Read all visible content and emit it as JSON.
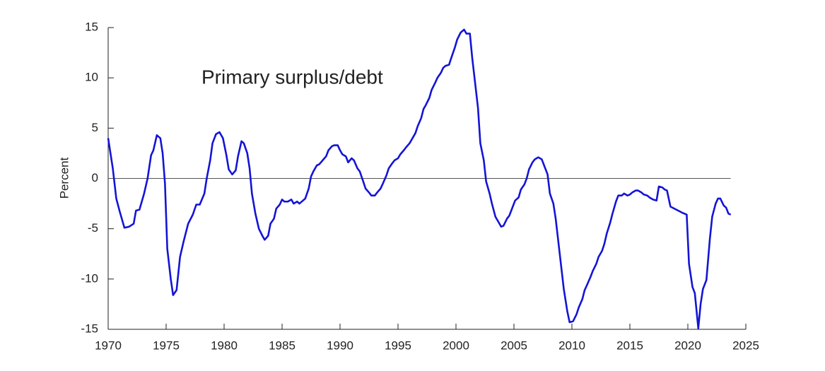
{
  "chart_data": {
    "type": "line",
    "ylabel": "Percent",
    "annotation": "Primary surplus/debt",
    "xlim": [
      1970,
      2025
    ],
    "xticks": [
      1970,
      1975,
      1980,
      1985,
      1990,
      1995,
      2000,
      2005,
      2010,
      2015,
      2020,
      2025
    ],
    "ylim": [
      -15,
      15
    ],
    "yticks": [
      -15,
      -10,
      -5,
      0,
      5,
      10,
      15
    ],
    "reference_line": 0,
    "series": [
      {
        "color": "#1414d6",
        "x": [
          1970.0,
          1970.4,
          1970.7,
          1971.0,
          1971.4,
          1971.8,
          1972.2,
          1972.4,
          1972.7,
          1973.1,
          1973.4,
          1973.7,
          1973.9,
          1974.2,
          1974.5,
          1974.7,
          1974.9,
          1975.1,
          1975.4,
          1975.6,
          1975.9,
          1976.2,
          1976.5,
          1976.9,
          1977.3,
          1977.6,
          1977.9,
          1978.3,
          1978.5,
          1978.8,
          1979.0,
          1979.3,
          1979.6,
          1979.9,
          1980.2,
          1980.4,
          1980.7,
          1981.0,
          1981.2,
          1981.5,
          1981.7,
          1982.0,
          1982.2,
          1982.4,
          1982.7,
          1983.0,
          1983.3,
          1983.5,
          1983.8,
          1984.0,
          1984.3,
          1984.5,
          1984.8,
          1985.0,
          1985.2,
          1985.5,
          1985.8,
          1986.0,
          1986.3,
          1986.5,
          1986.8,
          1987.0,
          1987.3,
          1987.5,
          1987.7,
          1988.0,
          1988.2,
          1988.5,
          1988.8,
          1989.0,
          1989.3,
          1989.5,
          1989.8,
          1990.0,
          1990.2,
          1990.5,
          1990.7,
          1991.0,
          1991.2,
          1991.5,
          1991.7,
          1992.0,
          1992.2,
          1992.5,
          1992.7,
          1993.0,
          1993.2,
          1993.5,
          1993.7,
          1994.0,
          1994.2,
          1994.5,
          1994.7,
          1995.0,
          1995.2,
          1995.5,
          1995.7,
          1996.0,
          1996.2,
          1996.5,
          1996.7,
          1997.0,
          1997.2,
          1997.4,
          1997.7,
          1997.9,
          1998.2,
          1998.4,
          1998.7,
          1998.9,
          1999.1,
          1999.4,
          1999.6,
          1999.9,
          2000.1,
          2000.4,
          2000.7,
          2000.9,
          2001.2,
          2001.4,
          2001.6,
          2001.9,
          2002.1,
          2002.4,
          2002.6,
          2002.9,
          2003.1,
          2003.4,
          2003.7,
          2003.9,
          2004.1,
          2004.4,
          2004.6,
          2004.9,
          2005.1,
          2005.4,
          2005.6,
          2005.9,
          2006.1,
          2006.3,
          2006.6,
          2006.8,
          2007.1,
          2007.4,
          2007.6,
          2007.9,
          2008.1,
          2008.4,
          2008.6,
          2008.8,
          2009.1,
          2009.3,
          2009.6,
          2009.8,
          2010.1,
          2010.4,
          2010.6,
          2010.9,
          2011.1,
          2011.3,
          2011.6,
          2011.8,
          2012.1,
          2012.3,
          2012.6,
          2012.8,
          2013.0,
          2013.3,
          2013.5,
          2013.8,
          2014.0,
          2014.3,
          2014.5,
          2014.8,
          2015.0,
          2015.2,
          2015.5,
          2015.7,
          2016.0,
          2016.2,
          2016.5,
          2016.7,
          2017.0,
          2017.3,
          2017.5,
          2017.8,
          2018.0,
          2018.2,
          2018.5,
          2019.0,
          2019.5,
          2019.9,
          2020.1,
          2020.4,
          2020.6,
          2020.9,
          2021.1,
          2021.3,
          2021.6,
          2021.9,
          2022.1,
          2022.4,
          2022.6,
          2022.8,
          2023.1,
          2023.3,
          2023.5,
          2023.7
        ],
        "values": [
          4.0,
          1.0,
          -2.0,
          -3.3,
          -4.9,
          -4.8,
          -4.5,
          -3.2,
          -3.1,
          -1.5,
          0.0,
          2.3,
          2.8,
          4.3,
          4.0,
          2.5,
          -0.5,
          -7.0,
          -10.0,
          -11.6,
          -11.1,
          -7.8,
          -6.3,
          -4.5,
          -3.6,
          -2.6,
          -2.6,
          -1.5,
          0.0,
          1.8,
          3.5,
          4.4,
          4.6,
          4.0,
          2.3,
          0.9,
          0.4,
          0.8,
          2.2,
          3.7,
          3.5,
          2.5,
          1.0,
          -1.5,
          -3.5,
          -5.0,
          -5.7,
          -6.1,
          -5.7,
          -4.5,
          -4.0,
          -3.0,
          -2.6,
          -2.1,
          -2.3,
          -2.3,
          -2.1,
          -2.5,
          -2.3,
          -2.5,
          -2.2,
          -2.0,
          -1.0,
          0.2,
          0.7,
          1.3,
          1.4,
          1.8,
          2.2,
          2.8,
          3.2,
          3.3,
          3.3,
          2.8,
          2.4,
          2.2,
          1.6,
          2.0,
          1.8,
          1.0,
          0.7,
          -0.3,
          -1.0,
          -1.4,
          -1.7,
          -1.7,
          -1.4,
          -1.0,
          -0.5,
          0.3,
          1.0,
          1.5,
          1.8,
          2.0,
          2.4,
          2.8,
          3.1,
          3.5,
          3.9,
          4.5,
          5.2,
          6.0,
          6.9,
          7.3,
          8.0,
          8.8,
          9.5,
          10.0,
          10.5,
          11.0,
          11.2,
          11.3,
          12.0,
          13.0,
          13.8,
          14.5,
          14.8,
          14.4,
          14.4,
          12.0,
          10.0,
          7.0,
          3.5,
          1.8,
          -0.3,
          -1.5,
          -2.5,
          -3.8,
          -4.4,
          -4.8,
          -4.7,
          -4.0,
          -3.7,
          -2.8,
          -2.2,
          -1.9,
          -1.1,
          -0.6,
          0.0,
          0.9,
          1.6,
          1.9,
          2.1,
          1.9,
          1.3,
          0.4,
          -1.5,
          -2.5,
          -4.0,
          -6.0,
          -9.0,
          -11.0,
          -13.2,
          -14.3,
          -14.2,
          -13.5,
          -12.8,
          -12.0,
          -11.1,
          -10.6,
          -9.8,
          -9.2,
          -8.5,
          -7.8,
          -7.2,
          -6.5,
          -5.5,
          -4.4,
          -3.5,
          -2.3,
          -1.7,
          -1.7,
          -1.5,
          -1.7,
          -1.6,
          -1.4,
          -1.2,
          -1.2,
          -1.4,
          -1.6,
          -1.7,
          -1.9,
          -2.1,
          -2.2,
          -0.8,
          -0.9,
          -1.1,
          -1.2,
          -2.8,
          -3.1,
          -3.4,
          -3.6,
          -8.5,
          -10.8,
          -11.4,
          -14.9,
          -12.5,
          -11.0,
          -10.1,
          -6.0,
          -3.8,
          -2.5,
          -2.0,
          -2.0,
          -2.7,
          -2.9,
          -3.5,
          -3.6
        ]
      }
    ]
  }
}
